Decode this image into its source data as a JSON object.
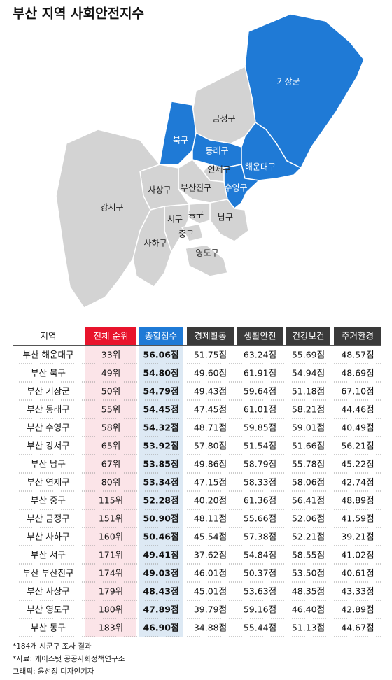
{
  "title": "부산 지역 사회안전지수",
  "map": {
    "regions": [
      {
        "label": "기장군",
        "color": "#1f7ad6"
      },
      {
        "label": "금정구",
        "color": "#d3d3d3"
      },
      {
        "label": "북구",
        "color": "#1f7ad6"
      },
      {
        "label": "동래구",
        "color": "#1f7ad6"
      },
      {
        "label": "해운대구",
        "color": "#1f7ad6"
      },
      {
        "label": "수영구",
        "color": "#1f7ad6"
      },
      {
        "label": "연제구",
        "color": "#d3d3d3"
      },
      {
        "label": "부산진구",
        "color": "#d3d3d3"
      },
      {
        "label": "남구",
        "color": "#d3d3d3"
      },
      {
        "label": "동구",
        "color": "#d3d3d3"
      },
      {
        "label": "서구",
        "color": "#d3d3d3"
      },
      {
        "label": "중구",
        "color": "#d3d3d3"
      },
      {
        "label": "사상구",
        "color": "#d3d3d3"
      },
      {
        "label": "강서구",
        "color": "#d3d3d3"
      },
      {
        "label": "사하구",
        "color": "#d3d3d3"
      },
      {
        "label": "영도구",
        "color": "#d3d3d3"
      }
    ]
  },
  "table": {
    "header": [
      "지역",
      "전체 순위",
      "종합점수",
      "경제활동",
      "생활안전",
      "건강보건",
      "주거환경"
    ],
    "rows": [
      [
        "부산 해운대구",
        "33위",
        "56.06점",
        "51.75점",
        "63.24점",
        "55.69점",
        "48.57점"
      ],
      [
        "부산 북구",
        "49위",
        "54.80점",
        "49.60점",
        "61.91점",
        "54.94점",
        "48.69점"
      ],
      [
        "부산 기장군",
        "50위",
        "54.79점",
        "49.43점",
        "59.64점",
        "51.18점",
        "67.10점"
      ],
      [
        "부산 동래구",
        "55위",
        "54.45점",
        "47.45점",
        "61.01점",
        "58.21점",
        "44.46점"
      ],
      [
        "부산 수영구",
        "58위",
        "54.32점",
        "48.71점",
        "59.85점",
        "59.01점",
        "40.49점"
      ],
      [
        "부산 강서구",
        "65위",
        "53.92점",
        "57.80점",
        "51.54점",
        "51.66점",
        "56.21점"
      ],
      [
        "부산 남구",
        "67위",
        "53.85점",
        "49.86점",
        "58.79점",
        "55.78점",
        "45.22점"
      ],
      [
        "부산 연제구",
        "80위",
        "53.34점",
        "47.15점",
        "58.33점",
        "58.06점",
        "42.74점"
      ],
      [
        "부산 중구",
        "115위",
        "52.28점",
        "40.20점",
        "61.36점",
        "56.41점",
        "48.89점"
      ],
      [
        "부산 금정구",
        "151위",
        "50.90점",
        "48.11점",
        "55.66점",
        "52.06점",
        "41.59점"
      ],
      [
        "부산 사하구",
        "160위",
        "50.46점",
        "45.54점",
        "57.38점",
        "52.21점",
        "39.21점"
      ],
      [
        "부산 서구",
        "171위",
        "49.41점",
        "37.62점",
        "54.84점",
        "58.55점",
        "41.02점"
      ],
      [
        "부산 부산진구",
        "174위",
        "49.03점",
        "46.01점",
        "50.37점",
        "53.50점",
        "40.61점"
      ],
      [
        "부산 사상구",
        "179위",
        "48.43점",
        "45.01점",
        "53.63점",
        "48.35점",
        "43.33점"
      ],
      [
        "부산 영도구",
        "180위",
        "47.89점",
        "39.79점",
        "59.16점",
        "46.40점",
        "42.89점"
      ],
      [
        "부산 동구",
        "183위",
        "46.90점",
        "34.88점",
        "55.44점",
        "51.13점",
        "44.67점"
      ]
    ]
  },
  "footnotes": [
    "*184개 시군구 조사 결과",
    "*자료: 케이스탯 공공사회정책연구소",
    "그래픽: 윤선정 디자인기자"
  ]
}
